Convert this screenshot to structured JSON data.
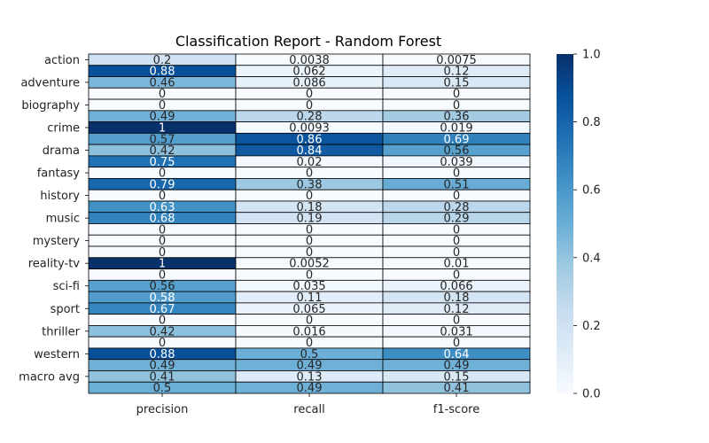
{
  "chart_data": {
    "type": "heatmap",
    "title": "Classification Report - Random Forest",
    "x_labels": [
      "precision",
      "recall",
      "f1-score"
    ],
    "y_tick_labels": [
      "action",
      "adventure",
      "biography",
      "crime",
      "drama",
      "fantasy",
      "history",
      "music",
      "mystery",
      "reality-tv",
      "sci-fi",
      "sport",
      "thriller",
      "western",
      "macro avg"
    ],
    "rows": 30,
    "y_tick_rows": [
      0,
      2,
      4,
      6,
      8,
      10,
      12,
      14,
      16,
      18,
      20,
      22,
      24,
      26,
      28
    ],
    "values": [
      [
        0.2,
        0.0038,
        0.0075
      ],
      [
        0.88,
        0.062,
        0.12
      ],
      [
        0.46,
        0.086,
        0.15
      ],
      [
        0,
        0,
        0
      ],
      [
        0,
        0,
        0
      ],
      [
        0.49,
        0.28,
        0.36
      ],
      [
        1,
        0.0093,
        0.019
      ],
      [
        0.57,
        0.86,
        0.69
      ],
      [
        0.42,
        0.84,
        0.56
      ],
      [
        0.75,
        0.02,
        0.039
      ],
      [
        0,
        0,
        0
      ],
      [
        0.79,
        0.38,
        0.51
      ],
      [
        0,
        0,
        0
      ],
      [
        0.63,
        0.18,
        0.28
      ],
      [
        0.68,
        0.19,
        0.29
      ],
      [
        0,
        0,
        0
      ],
      [
        0,
        0,
        0
      ],
      [
        0,
        0,
        0
      ],
      [
        1,
        0.0052,
        0.01
      ],
      [
        0,
        0,
        0
      ],
      [
        0.56,
        0.035,
        0.066
      ],
      [
        0.58,
        0.11,
        0.18
      ],
      [
        0.67,
        0.065,
        0.12
      ],
      [
        0,
        0,
        0
      ],
      [
        0.42,
        0.016,
        0.031
      ],
      [
        0,
        0,
        0
      ],
      [
        0.88,
        0.5,
        0.64
      ],
      [
        0.49,
        0.49,
        0.49
      ],
      [
        0.41,
        0.13,
        0.15
      ],
      [
        0.5,
        0.49,
        0.41
      ]
    ],
    "colormap": "Blues",
    "color_range": [
      0.0,
      1.0
    ],
    "colorbar_ticks": [
      "0.0",
      "0.2",
      "0.4",
      "0.6",
      "0.8",
      "1.0"
    ],
    "annotation_dark_text_color": "#262626",
    "annotation_light_text_color": "#ffffff",
    "cell_border_color": "#000000"
  }
}
